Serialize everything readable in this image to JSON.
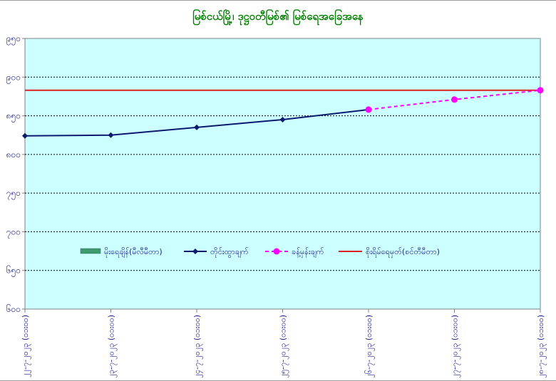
{
  "chart_data": {
    "type": "line",
    "title": "မြစ်ငယ်မြို့၊ ဒုဋ္ဌဝတီမြစ်၏ မြစ်ရေအခြေအနေ",
    "x_labels": [
      "၂၂-၇-၂၀၂၃ (၀၁း၀၀)",
      "၂၃-၇-၂၀၂၃ (၀၁း၀၀)",
      "၂၄-၇-၂၀၂၃ (၀၁း၀၀)",
      "၂၅-၇-၂၀၂၃ (၀၁း၀၀)",
      "၂၆-၇-၂၀၂၃ (၀၁း၀၀)",
      "၂၇-၇-၂၀၂၃ (၀၁း၀၀)",
      "၂၈-၇-၂၀၂၃ (၀၁း၀၀)"
    ],
    "y_ticks": [
      "၆၀၀",
      "၆၅၀",
      "၇၀၀",
      "၇၅၀",
      "၈၀၀",
      "၈၅၀",
      "၉၀၀",
      "၉၅၀"
    ],
    "ylim": [
      600,
      950
    ],
    "grid": true,
    "legend_position": "center",
    "series": [
      {
        "name": "မိုးရေချိန်(မီလီမီတာ)",
        "style": "bar",
        "color": "#3d9970",
        "values": []
      },
      {
        "name": "တိုင်းထွာချက်",
        "style": "solid-diamond",
        "color": "#0b1a6e",
        "x_index": [
          0,
          1,
          2,
          3,
          4
        ],
        "values": [
          824,
          825,
          835,
          845,
          858
        ]
      },
      {
        "name": "ခန့်မှန်းချက်",
        "style": "dashed-circle",
        "color": "#ff00ff",
        "x_index": [
          4,
          5,
          6
        ],
        "values": [
          858,
          871,
          883
        ]
      },
      {
        "name": "စိုးရိမ်ရေမှတ်(စင်တီမီတာ)",
        "style": "hline",
        "color": "#e02020",
        "value": 883
      }
    ]
  }
}
